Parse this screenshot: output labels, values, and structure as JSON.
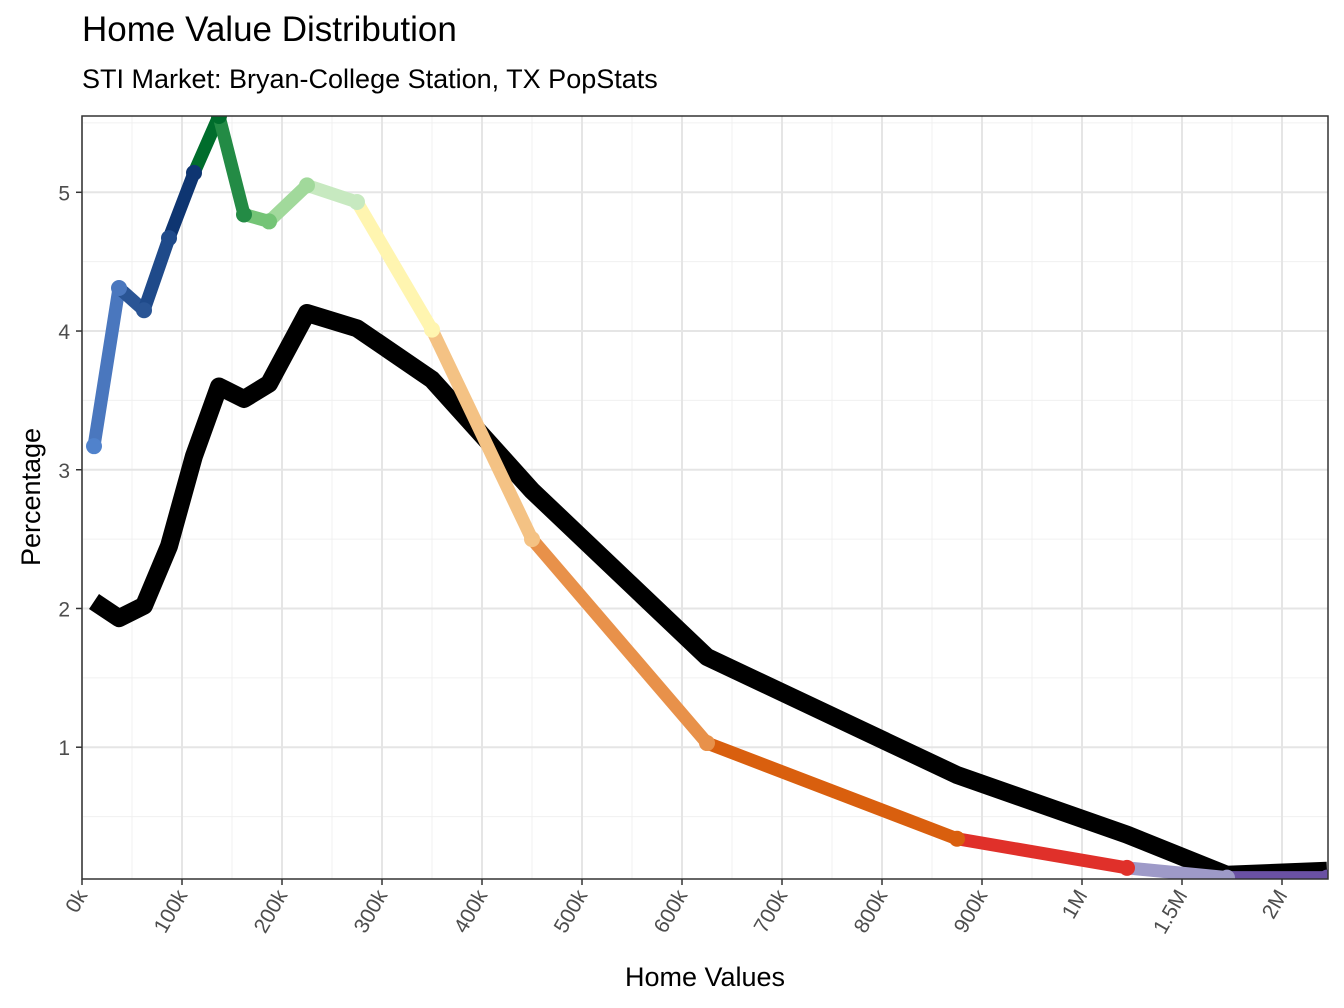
{
  "chart_data": {
    "type": "line",
    "title": "Home Value Distribution",
    "subtitle": "STI Market: Bryan-College Station, TX PopStats",
    "xlabel": "Home Values",
    "ylabel": "Percentage",
    "ylim": [
      0.05,
      5.55
    ],
    "y_ticks": [
      1,
      2,
      3,
      4,
      5
    ],
    "x_tick_labels": [
      "0k",
      "100k",
      "200k",
      "300k",
      "400k",
      "500k",
      "600k",
      "700k",
      "800k",
      "900k",
      "1M",
      "1.5M",
      "2M"
    ],
    "grid": true,
    "series": [
      {
        "name": "STI Market",
        "points": [
          {
            "pos": 0.12,
            "value": 3.17,
            "color": "#5082cc"
          },
          {
            "pos": 0.37,
            "value": 4.31,
            "color": "#4a77be"
          },
          {
            "pos": 0.62,
            "value": 4.15,
            "color": "#2a5595"
          },
          {
            "pos": 0.87,
            "value": 4.67,
            "color": "#1f4a8a"
          },
          {
            "pos": 1.12,
            "value": 5.14,
            "color": "#0e3571"
          },
          {
            "pos": 1.37,
            "value": 5.55,
            "color": "#006d2c"
          },
          {
            "pos": 1.62,
            "value": 4.84,
            "color": "#238b45"
          },
          {
            "pos": 1.87,
            "value": 4.79,
            "color": "#74c476"
          },
          {
            "pos": 2.25,
            "value": 5.05,
            "color": "#a1d99b"
          },
          {
            "pos": 2.75,
            "value": 4.93,
            "color": "#c7e9c0"
          },
          {
            "pos": 3.5,
            "value": 4.01,
            "color": "#fff5b0"
          },
          {
            "pos": 4.5,
            "value": 2.5,
            "color": "#f4c284"
          },
          {
            "pos": 6.25,
            "value": 1.03,
            "color": "#e8914a"
          },
          {
            "pos": 8.75,
            "value": 0.34,
            "color": "#d95f0e"
          },
          {
            "pos": 10.45,
            "value": 0.13,
            "color": "#e0302a"
          },
          {
            "pos": 11.45,
            "value": 0.06,
            "color": "#9e9ac8"
          },
          {
            "pos": 12.45,
            "value": 0.06,
            "color": "#6a51a3"
          }
        ]
      },
      {
        "name": "PopStats",
        "color": "#000000",
        "points": [
          {
            "pos": 0.12,
            "value": 2.05
          },
          {
            "pos": 0.37,
            "value": 1.93
          },
          {
            "pos": 0.62,
            "value": 2.02
          },
          {
            "pos": 0.87,
            "value": 2.45
          },
          {
            "pos": 1.12,
            "value": 3.1
          },
          {
            "pos": 1.37,
            "value": 3.6
          },
          {
            "pos": 1.62,
            "value": 3.51
          },
          {
            "pos": 1.87,
            "value": 3.62
          },
          {
            "pos": 2.25,
            "value": 4.13
          },
          {
            "pos": 2.75,
            "value": 4.02
          },
          {
            "pos": 3.5,
            "value": 3.65
          },
          {
            "pos": 4.5,
            "value": 2.85
          },
          {
            "pos": 6.25,
            "value": 1.65
          },
          {
            "pos": 8.75,
            "value": 0.8
          },
          {
            "pos": 10.45,
            "value": 0.37
          },
          {
            "pos": 11.45,
            "value": 0.08
          },
          {
            "pos": 12.45,
            "value": 0.11
          }
        ]
      }
    ]
  }
}
